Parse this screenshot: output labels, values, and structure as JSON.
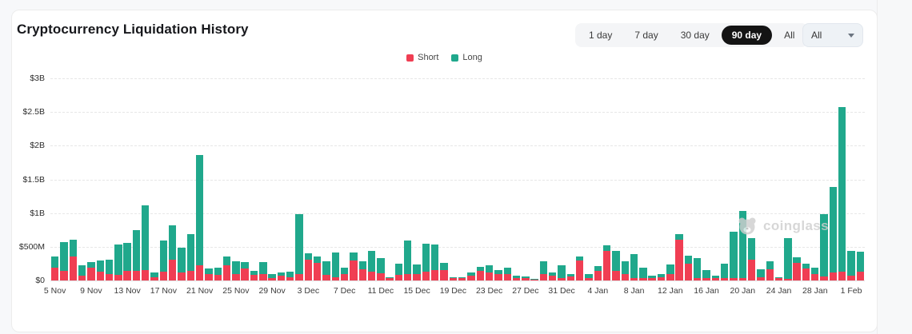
{
  "page": {
    "background": "#f7f8fa",
    "panel_background": "#ffffff"
  },
  "header": {
    "title": "Cryptocurrency Liquidation History",
    "range_buttons": [
      {
        "label": "1 day",
        "active": false
      },
      {
        "label": "7 day",
        "active": false
      },
      {
        "label": "30 day",
        "active": false
      },
      {
        "label": "90 day",
        "active": true
      },
      {
        "label": "All",
        "active": false
      }
    ],
    "dropdown": {
      "value": "All"
    }
  },
  "watermark": {
    "text": "coinglass"
  },
  "chart_data": {
    "type": "bar",
    "stacked": true,
    "title": "Cryptocurrency Liquidation History",
    "unit": "USD millions",
    "grid": "dashed-horizontal",
    "legend_position": "top-center",
    "ylim": [
      0,
      3000
    ],
    "y_ticks": [
      {
        "value": 0,
        "label": "$0"
      },
      {
        "value": 500,
        "label": "$500M"
      },
      {
        "value": 1000,
        "label": "$1B"
      },
      {
        "value": 1500,
        "label": "$1.5B"
      },
      {
        "value": 2000,
        "label": "$2B"
      },
      {
        "value": 2500,
        "label": "$2.5B"
      },
      {
        "value": 3000,
        "label": "$3B"
      }
    ],
    "x_tick_every": 4,
    "categories": [
      "5 Nov",
      "6 Nov",
      "7 Nov",
      "8 Nov",
      "9 Nov",
      "10 Nov",
      "11 Nov",
      "12 Nov",
      "13 Nov",
      "14 Nov",
      "15 Nov",
      "16 Nov",
      "17 Nov",
      "18 Nov",
      "19 Nov",
      "20 Nov",
      "21 Nov",
      "22 Nov",
      "23 Nov",
      "24 Nov",
      "25 Nov",
      "26 Nov",
      "27 Nov",
      "28 Nov",
      "29 Nov",
      "30 Nov",
      "1 Dec",
      "2 Dec",
      "3 Dec",
      "4 Dec",
      "5 Dec",
      "6 Dec",
      "7 Dec",
      "8 Dec",
      "9 Dec",
      "10 Dec",
      "11 Dec",
      "12 Dec",
      "13 Dec",
      "14 Dec",
      "15 Dec",
      "16 Dec",
      "17 Dec",
      "18 Dec",
      "19 Dec",
      "20 Dec",
      "21 Dec",
      "22 Dec",
      "23 Dec",
      "24 Dec",
      "25 Dec",
      "26 Dec",
      "27 Dec",
      "28 Dec",
      "29 Dec",
      "30 Dec",
      "31 Dec",
      "1 Jan",
      "2 Jan",
      "3 Jan",
      "4 Jan",
      "5 Jan",
      "6 Jan",
      "7 Jan",
      "8 Jan",
      "9 Jan",
      "10 Jan",
      "11 Jan",
      "12 Jan",
      "13 Jan",
      "14 Jan",
      "15 Jan",
      "16 Jan",
      "17 Jan",
      "18 Jan",
      "19 Jan",
      "20 Jan",
      "21 Jan",
      "22 Jan",
      "23 Jan",
      "24 Jan",
      "25 Jan",
      "26 Jan",
      "27 Jan",
      "28 Jan",
      "29 Jan",
      "30 Jan",
      "31 Jan",
      "1 Feb",
      "2 Feb"
    ],
    "series": [
      {
        "name": "Short",
        "color": "#f03e53",
        "values": [
          190,
          140,
          360,
          70,
          190,
          130,
          100,
          80,
          140,
          140,
          160,
          50,
          130,
          310,
          120,
          140,
          220,
          90,
          80,
          230,
          90,
          180,
          80,
          90,
          40,
          70,
          50,
          90,
          310,
          260,
          80,
          50,
          100,
          300,
          170,
          130,
          110,
          30,
          80,
          90,
          100,
          130,
          150,
          160,
          30,
          30,
          70,
          140,
          120,
          100,
          90,
          40,
          30,
          20,
          100,
          70,
          40,
          60,
          300,
          40,
          140,
          440,
          140,
          90,
          40,
          40,
          30,
          50,
          90,
          600,
          250,
          30,
          30,
          30,
          40,
          40,
          30,
          310,
          50,
          170,
          30,
          20,
          260,
          180,
          100,
          60,
          120,
          130,
          70,
          130
        ]
      },
      {
        "name": "Long",
        "color": "#20a88c",
        "values": [
          170,
          430,
          250,
          160,
          80,
          170,
          210,
          450,
          420,
          610,
          960,
          70,
          460,
          510,
          370,
          550,
          1640,
          90,
          110,
          130,
          200,
          90,
          60,
          180,
          50,
          50,
          80,
          890,
          90,
          100,
          210,
          370,
          90,
          120,
          120,
          310,
          220,
          20,
          170,
          500,
          140,
          410,
          380,
          100,
          20,
          20,
          50,
          60,
          110,
          60,
          100,
          30,
          30,
          10,
          180,
          50,
          180,
          40,
          60,
          60,
          70,
          80,
          300,
          190,
          350,
          150,
          40,
          50,
          150,
          90,
          120,
          300,
          120,
          40,
          210,
          680,
          1000,
          320,
          120,
          120,
          20,
          610,
          90,
          70,
          90,
          920,
          1270,
          2440,
          370,
          300
        ]
      }
    ]
  }
}
